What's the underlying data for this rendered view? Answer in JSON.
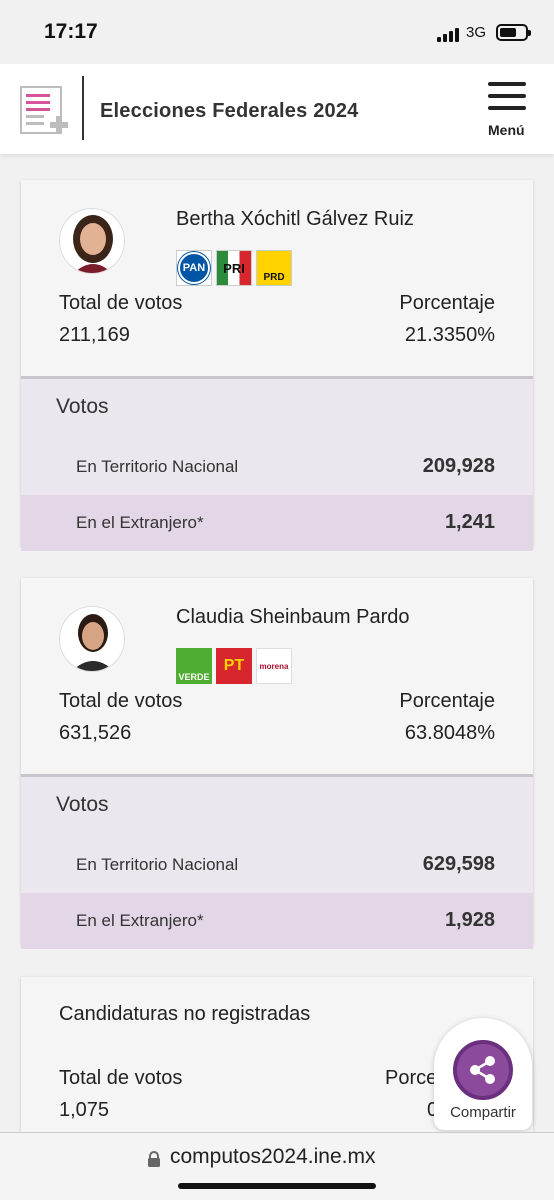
{
  "status": {
    "time": "17:17",
    "network": "3G"
  },
  "header": {
    "title": "Elecciones Federales 2024",
    "menu_label": "Menú"
  },
  "candidates": [
    {
      "name": "Bertha Xóchitl Gálvez Ruiz",
      "parties": [
        {
          "label": "PAN",
          "color": "#0055a5"
        },
        {
          "label": "PRI",
          "color": "#d7262e"
        },
        {
          "label": "PRD",
          "color": "#ffd200"
        }
      ],
      "total_label": "Total de votos",
      "total_value": "211,169",
      "pct_label": "Porcentaje",
      "pct_value": "21.3350%",
      "votos_title": "Votos",
      "rows": [
        {
          "label": "En Territorio Nacional",
          "value": "209,928"
        },
        {
          "label": "En el Extranjero*",
          "value": "1,241"
        }
      ]
    },
    {
      "name": "Claudia Sheinbaum Pardo",
      "parties": [
        {
          "label": "VERDE",
          "color": "#4fae32"
        },
        {
          "label": "PT",
          "color": "#d7262e"
        },
        {
          "label": "morena",
          "color": "#a8112e"
        }
      ],
      "total_label": "Total de votos",
      "total_value": "631,526",
      "pct_label": "Porcentaje",
      "pct_value": "63.8048%",
      "votos_title": "Votos",
      "rows": [
        {
          "label": "En Territorio Nacional",
          "value": "629,598"
        },
        {
          "label": "En el Extranjero*",
          "value": "1,928"
        }
      ]
    }
  ],
  "unregistered": {
    "title": "Candidaturas no registradas",
    "total_label": "Total de votos",
    "total_value": "1,075",
    "pct_label": "Porce",
    "pct_value": "0.1"
  },
  "share": {
    "label": "Compartir"
  },
  "url": {
    "text": "computos2024.ine.mx"
  }
}
